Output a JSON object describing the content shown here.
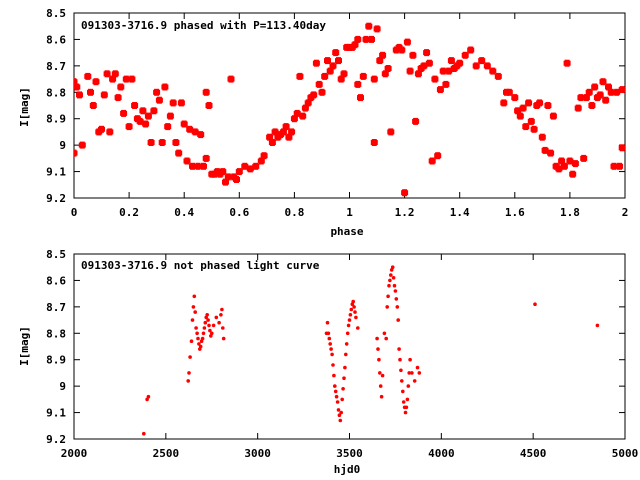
{
  "chart_data": [
    {
      "type": "scatter",
      "title": "091303-3716.9 phased with P=113.40day",
      "xlabel": "phase",
      "ylabel": "I[mag]",
      "xlim": [
        0,
        2
      ],
      "ylim": [
        9.2,
        8.5
      ],
      "y_inverted": true,
      "grid": false,
      "marker": "star",
      "color": "#ff0000",
      "xticks": [
        "0",
        "0.2",
        "0.4",
        "0.6",
        "0.8",
        "1",
        "1.2",
        "1.4",
        "1.6",
        "1.8",
        "2"
      ],
      "yticks": [
        "8.5",
        "8.6",
        "8.7",
        "8.8",
        "8.9",
        "9",
        "9.1",
        "9.2"
      ],
      "points": [
        [
          0.0,
          8.76
        ],
        [
          0.01,
          8.78
        ],
        [
          0.02,
          8.81
        ],
        [
          0.0,
          9.03
        ],
        [
          0.03,
          9.0
        ],
        [
          0.05,
          8.74
        ],
        [
          0.06,
          8.8
        ],
        [
          0.07,
          8.85
        ],
        [
          0.08,
          8.76
        ],
        [
          0.09,
          8.95
        ],
        [
          0.1,
          8.94
        ],
        [
          0.11,
          8.81
        ],
        [
          0.12,
          8.73
        ],
        [
          0.13,
          8.95
        ],
        [
          0.14,
          8.75
        ],
        [
          0.15,
          8.73
        ],
        [
          0.16,
          8.82
        ],
        [
          0.17,
          8.78
        ],
        [
          0.18,
          8.88
        ],
        [
          0.19,
          8.75
        ],
        [
          0.2,
          8.93
        ],
        [
          0.21,
          8.75
        ],
        [
          0.22,
          8.85
        ],
        [
          0.23,
          8.9
        ],
        [
          0.24,
          8.91
        ],
        [
          0.25,
          8.87
        ],
        [
          0.26,
          8.92
        ],
        [
          0.27,
          8.89
        ],
        [
          0.28,
          8.99
        ],
        [
          0.29,
          8.87
        ],
        [
          0.3,
          8.8
        ],
        [
          0.31,
          8.83
        ],
        [
          0.32,
          8.99
        ],
        [
          0.33,
          8.78
        ],
        [
          0.34,
          8.93
        ],
        [
          0.35,
          8.89
        ],
        [
          0.36,
          8.84
        ],
        [
          0.37,
          8.99
        ],
        [
          0.38,
          9.03
        ],
        [
          0.39,
          8.84
        ],
        [
          0.4,
          8.92
        ],
        [
          0.41,
          9.06
        ],
        [
          0.42,
          8.94
        ],
        [
          0.43,
          9.08
        ],
        [
          0.44,
          8.95
        ],
        [
          0.45,
          9.08
        ],
        [
          0.46,
          8.96
        ],
        [
          0.47,
          9.08
        ],
        [
          0.48,
          9.05
        ],
        [
          0.48,
          8.8
        ],
        [
          0.49,
          8.85
        ],
        [
          0.5,
          9.11
        ],
        [
          0.51,
          9.11
        ],
        [
          0.52,
          9.1
        ],
        [
          0.53,
          9.11
        ],
        [
          0.54,
          9.1
        ],
        [
          0.55,
          9.14
        ],
        [
          0.56,
          9.12
        ],
        [
          0.57,
          8.75
        ],
        [
          0.58,
          9.12
        ],
        [
          0.59,
          9.13
        ],
        [
          0.6,
          9.1
        ],
        [
          0.62,
          9.08
        ],
        [
          0.64,
          9.09
        ],
        [
          0.66,
          9.08
        ],
        [
          0.68,
          9.06
        ],
        [
          0.69,
          9.04
        ],
        [
          0.71,
          8.97
        ],
        [
          0.72,
          8.99
        ],
        [
          0.73,
          8.95
        ],
        [
          0.74,
          8.97
        ],
        [
          0.75,
          8.96
        ],
        [
          0.76,
          8.95
        ],
        [
          0.77,
          8.93
        ],
        [
          0.78,
          8.97
        ],
        [
          0.79,
          8.95
        ],
        [
          0.8,
          8.9
        ],
        [
          0.81,
          8.88
        ],
        [
          0.82,
          8.74
        ],
        [
          0.83,
          8.89
        ],
        [
          0.84,
          8.86
        ],
        [
          0.85,
          8.84
        ],
        [
          0.86,
          8.82
        ],
        [
          0.87,
          8.81
        ],
        [
          0.88,
          8.69
        ],
        [
          0.89,
          8.77
        ],
        [
          0.9,
          8.8
        ],
        [
          0.91,
          8.74
        ],
        [
          0.92,
          8.68
        ],
        [
          0.93,
          8.72
        ],
        [
          0.94,
          8.7
        ],
        [
          0.95,
          8.65
        ],
        [
          0.96,
          8.68
        ],
        [
          0.97,
          8.75
        ],
        [
          0.98,
          8.73
        ],
        [
          0.99,
          8.63
        ],
        [
          1.0,
          8.63
        ],
        [
          1.01,
          8.63
        ],
        [
          1.02,
          8.62
        ],
        [
          1.03,
          8.6
        ],
        [
          1.03,
          8.77
        ],
        [
          1.04,
          8.82
        ],
        [
          1.05,
          8.74
        ],
        [
          1.06,
          8.6
        ],
        [
          1.07,
          8.55
        ],
        [
          1.08,
          8.6
        ],
        [
          1.09,
          8.75
        ],
        [
          1.09,
          8.99
        ],
        [
          1.1,
          8.56
        ],
        [
          1.11,
          8.68
        ],
        [
          1.12,
          8.66
        ],
        [
          1.13,
          8.73
        ],
        [
          1.14,
          8.71
        ],
        [
          1.15,
          8.95
        ],
        [
          1.17,
          8.64
        ],
        [
          1.18,
          8.63
        ],
        [
          1.19,
          8.64
        ],
        [
          1.2,
          9.18
        ],
        [
          1.21,
          8.61
        ],
        [
          1.22,
          8.72
        ],
        [
          1.23,
          8.66
        ],
        [
          1.24,
          8.91
        ],
        [
          1.25,
          8.73
        ],
        [
          1.26,
          8.71
        ],
        [
          1.27,
          8.7
        ],
        [
          1.28,
          8.65
        ],
        [
          1.29,
          8.69
        ],
        [
          1.3,
          9.06
        ],
        [
          1.31,
          8.75
        ],
        [
          1.32,
          9.04
        ],
        [
          1.33,
          8.79
        ],
        [
          1.34,
          8.72
        ],
        [
          1.35,
          8.77
        ],
        [
          1.36,
          8.72
        ],
        [
          1.37,
          8.68
        ],
        [
          1.38,
          8.71
        ],
        [
          1.39,
          8.7
        ],
        [
          1.4,
          8.69
        ],
        [
          1.42,
          8.66
        ],
        [
          1.44,
          8.64
        ],
        [
          1.46,
          8.7
        ],
        [
          1.48,
          8.68
        ],
        [
          1.5,
          8.7
        ],
        [
          1.52,
          8.72
        ],
        [
          1.54,
          8.74
        ],
        [
          1.56,
          8.84
        ],
        [
          1.57,
          8.8
        ],
        [
          1.58,
          8.8
        ],
        [
          1.6,
          8.82
        ],
        [
          1.61,
          8.87
        ],
        [
          1.62,
          8.89
        ],
        [
          1.63,
          8.86
        ],
        [
          1.64,
          8.93
        ],
        [
          1.65,
          8.84
        ],
        [
          1.66,
          8.91
        ],
        [
          1.67,
          8.94
        ],
        [
          1.68,
          8.85
        ],
        [
          1.69,
          8.84
        ],
        [
          1.7,
          8.97
        ],
        [
          1.71,
          9.02
        ],
        [
          1.72,
          8.85
        ],
        [
          1.73,
          9.03
        ],
        [
          1.74,
          8.89
        ],
        [
          1.75,
          9.08
        ],
        [
          1.76,
          9.09
        ],
        [
          1.77,
          9.06
        ],
        [
          1.78,
          9.08
        ],
        [
          1.79,
          8.69
        ],
        [
          1.8,
          9.06
        ],
        [
          1.81,
          9.11
        ],
        [
          1.82,
          9.07
        ],
        [
          1.83,
          8.86
        ],
        [
          1.84,
          8.82
        ],
        [
          1.85,
          9.05
        ],
        [
          1.86,
          8.82
        ],
        [
          1.87,
          8.8
        ],
        [
          1.88,
          8.85
        ],
        [
          1.89,
          8.78
        ],
        [
          1.9,
          8.82
        ],
        [
          1.91,
          8.81
        ],
        [
          1.92,
          8.76
        ],
        [
          1.93,
          8.83
        ],
        [
          1.94,
          8.78
        ],
        [
          1.95,
          8.8
        ],
        [
          1.96,
          9.08
        ],
        [
          1.97,
          8.8
        ],
        [
          1.98,
          9.08
        ],
        [
          1.99,
          9.01
        ],
        [
          1.99,
          8.79
        ]
      ]
    },
    {
      "type": "scatter",
      "title": "091303-3716.9 not phased light curve",
      "xlabel": "hjd0",
      "ylabel": "I[mag]",
      "xlim": [
        2000,
        5000
      ],
      "ylim": [
        9.2,
        8.5
      ],
      "y_inverted": true,
      "grid": false,
      "marker": "dot",
      "color": "#ff0000",
      "xticks": [
        "2000",
        "2500",
        "3000",
        "3500",
        "4000",
        "4500",
        "5000"
      ],
      "yticks": [
        "8.5",
        "8.6",
        "8.7",
        "8.8",
        "8.9",
        "9",
        "9.1",
        "9.2"
      ],
      "points": [
        [
          2380,
          9.18
        ],
        [
          2398,
          9.05
        ],
        [
          2405,
          9.04
        ],
        [
          2622,
          8.98
        ],
        [
          2626,
          8.95
        ],
        [
          2632,
          8.89
        ],
        [
          2640,
          8.83
        ],
        [
          2645,
          8.75
        ],
        [
          2650,
          8.7
        ],
        [
          2655,
          8.66
        ],
        [
          2660,
          8.72
        ],
        [
          2665,
          8.78
        ],
        [
          2670,
          8.8
        ],
        [
          2675,
          8.82
        ],
        [
          2680,
          8.84
        ],
        [
          2685,
          8.86
        ],
        [
          2690,
          8.85
        ],
        [
          2695,
          8.83
        ],
        [
          2700,
          8.82
        ],
        [
          2705,
          8.8
        ],
        [
          2710,
          8.78
        ],
        [
          2715,
          8.76
        ],
        [
          2720,
          8.74
        ],
        [
          2725,
          8.73
        ],
        [
          2730,
          8.75
        ],
        [
          2735,
          8.77
        ],
        [
          2740,
          8.79
        ],
        [
          2745,
          8.81
        ],
        [
          2750,
          8.8
        ],
        [
          2760,
          8.77
        ],
        [
          2775,
          8.74
        ],
        [
          2790,
          8.76
        ],
        [
          2800,
          8.73
        ],
        [
          2805,
          8.71
        ],
        [
          2810,
          8.78
        ],
        [
          2815,
          8.82
        ],
        [
          3375,
          8.8
        ],
        [
          3380,
          8.76
        ],
        [
          3385,
          8.8
        ],
        [
          3390,
          8.82
        ],
        [
          3395,
          8.84
        ],
        [
          3400,
          8.86
        ],
        [
          3405,
          8.88
        ],
        [
          3410,
          8.92
        ],
        [
          3415,
          8.96
        ],
        [
          3420,
          9.0
        ],
        [
          3425,
          9.02
        ],
        [
          3430,
          9.04
        ],
        [
          3435,
          9.06
        ],
        [
          3440,
          9.09
        ],
        [
          3445,
          9.11
        ],
        [
          3450,
          9.13
        ],
        [
          3455,
          9.1
        ],
        [
          3460,
          9.05
        ],
        [
          3465,
          9.01
        ],
        [
          3470,
          8.97
        ],
        [
          3475,
          8.93
        ],
        [
          3480,
          8.88
        ],
        [
          3485,
          8.84
        ],
        [
          3490,
          8.8
        ],
        [
          3495,
          8.77
        ],
        [
          3500,
          8.75
        ],
        [
          3505,
          8.73
        ],
        [
          3510,
          8.71
        ],
        [
          3515,
          8.69
        ],
        [
          3520,
          8.68
        ],
        [
          3525,
          8.7
        ],
        [
          3530,
          8.72
        ],
        [
          3535,
          8.74
        ],
        [
          3545,
          8.78
        ],
        [
          3650,
          8.82
        ],
        [
          3655,
          8.86
        ],
        [
          3660,
          8.9
        ],
        [
          3665,
          8.95
        ],
        [
          3670,
          9.0
        ],
        [
          3675,
          9.04
        ],
        [
          3680,
          8.96
        ],
        [
          3690,
          8.8
        ],
        [
          3700,
          8.82
        ],
        [
          3705,
          8.7
        ],
        [
          3710,
          8.66
        ],
        [
          3715,
          8.62
        ],
        [
          3720,
          8.6
        ],
        [
          3725,
          8.58
        ],
        [
          3730,
          8.56
        ],
        [
          3735,
          8.55
        ],
        [
          3740,
          8.59
        ],
        [
          3745,
          8.62
        ],
        [
          3750,
          8.64
        ],
        [
          3755,
          8.67
        ],
        [
          3760,
          8.7
        ],
        [
          3765,
          8.75
        ],
        [
          3770,
          8.86
        ],
        [
          3775,
          8.9
        ],
        [
          3780,
          8.94
        ],
        [
          3785,
          8.98
        ],
        [
          3790,
          9.02
        ],
        [
          3795,
          9.06
        ],
        [
          3800,
          9.08
        ],
        [
          3805,
          9.1
        ],
        [
          3810,
          9.08
        ],
        [
          3815,
          9.05
        ],
        [
          3820,
          9.0
        ],
        [
          3825,
          8.95
        ],
        [
          3830,
          8.9
        ],
        [
          3840,
          8.95
        ],
        [
          3855,
          8.98
        ],
        [
          3870,
          8.93
        ],
        [
          3880,
          8.95
        ],
        [
          4510,
          8.69
        ],
        [
          4850,
          8.77
        ]
      ]
    }
  ]
}
